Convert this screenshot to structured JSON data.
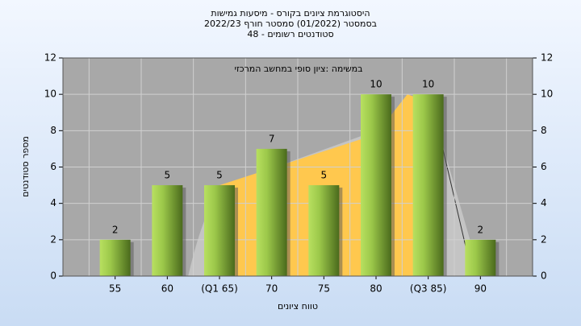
{
  "chart_data": {
    "type": "bar",
    "title": [
      "היסטוגרמת ציונים בקורס - מיסעות גמישות",
      "בסמסטר  (01/2022)  סמסטר חורף 2022/23",
      "סטודנטים רשומים - 48"
    ],
    "annotation": "במשימה :ציון סופי במחשב המרכזי",
    "xlabel": "טווח ציונים",
    "ylabel": "מספר סטודנטים",
    "categories": [
      "55",
      "60",
      "(Q1 65)",
      "70",
      "75",
      "80",
      "(Q3 85)",
      "90"
    ],
    "values": [
      2,
      5,
      5,
      7,
      5,
      10,
      10,
      2
    ],
    "ylim": [
      0,
      12
    ],
    "yticks": [
      0,
      2,
      4,
      6,
      8,
      10,
      12
    ],
    "y2lim": [
      0,
      12
    ],
    "y2ticks": [
      0,
      2,
      4,
      6,
      8,
      10,
      12
    ],
    "grid": true
  }
}
